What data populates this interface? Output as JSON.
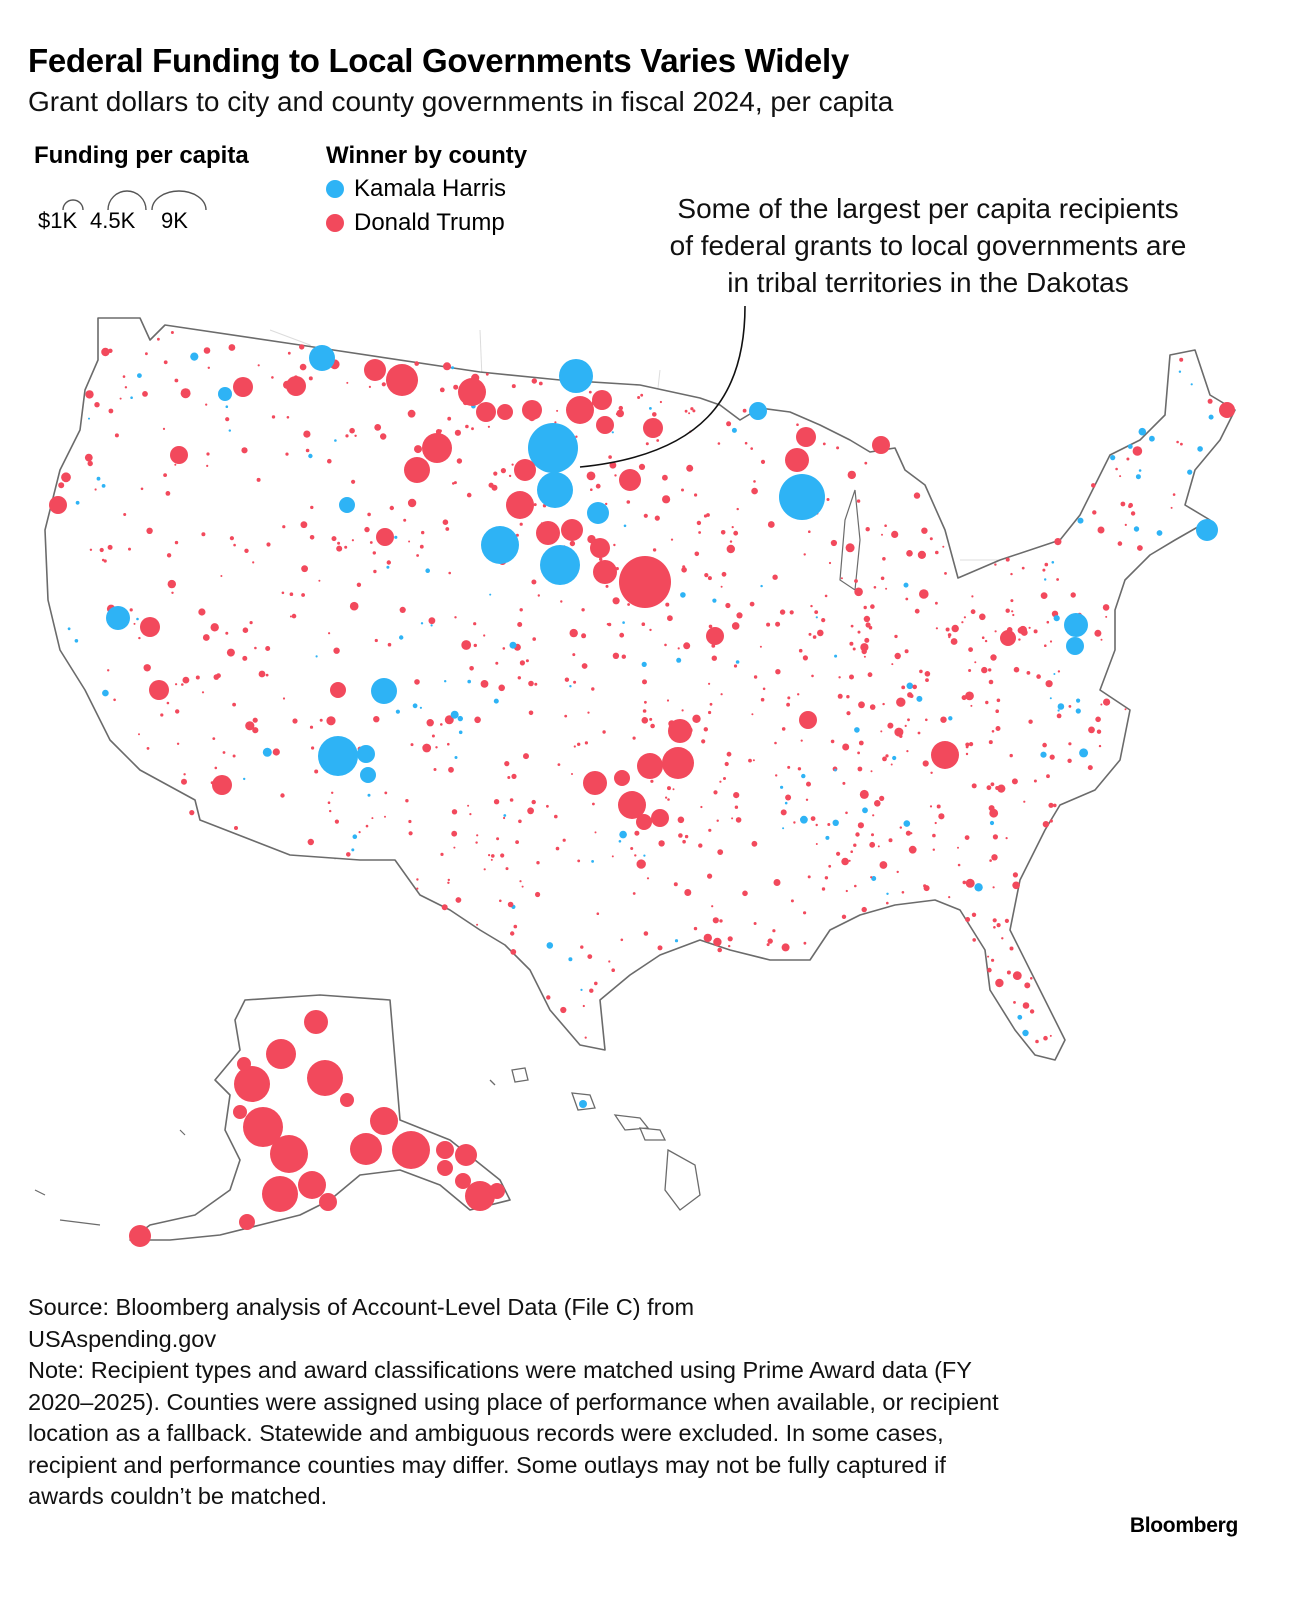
{
  "title": "Federal Funding to Local Governments Varies Widely",
  "subtitle": "Grant dollars to city and county governments in fiscal 2024, per capita",
  "legend": {
    "size_title": "Funding per capita",
    "size_levels": [
      {
        "label": "$1K",
        "value": 1000
      },
      {
        "label": "4.5K",
        "value": 4500
      },
      {
        "label": "9K",
        "value": 9000
      }
    ],
    "color_title": "Winner by county",
    "categories": [
      {
        "label": "Kamala Harris",
        "color": "#2EB3F5"
      },
      {
        "label": "Donald Trump",
        "color": "#F2495C"
      }
    ]
  },
  "annotation": {
    "lines": [
      "Some of the largest per capita recipients",
      "of federal grants to local governments are",
      "in tribal territories in the Dakotas"
    ]
  },
  "source": {
    "source_line_1": "Source: Bloomberg analysis of Account-Level Data (File C) from",
    "source_line_2": "USAspending.gov",
    "note": "Note: Recipient types and award classifications were matched using Prime Award data (FY 2020–2025). Counties were assigned using place of performance when available, or recipient location as a fallback. Statewide and ambiguous records were excluded. In some cases, recipient and performance counties may differ. Some outlays may not be fully captured if awards couldn’t be matched."
  },
  "brand": "Bloomberg",
  "map_colors": {
    "harris": "#2EB3F5",
    "trump": "#F2495C",
    "outline": "#6B6B6B",
    "inner_borders": "#D9D9D9"
  }
}
